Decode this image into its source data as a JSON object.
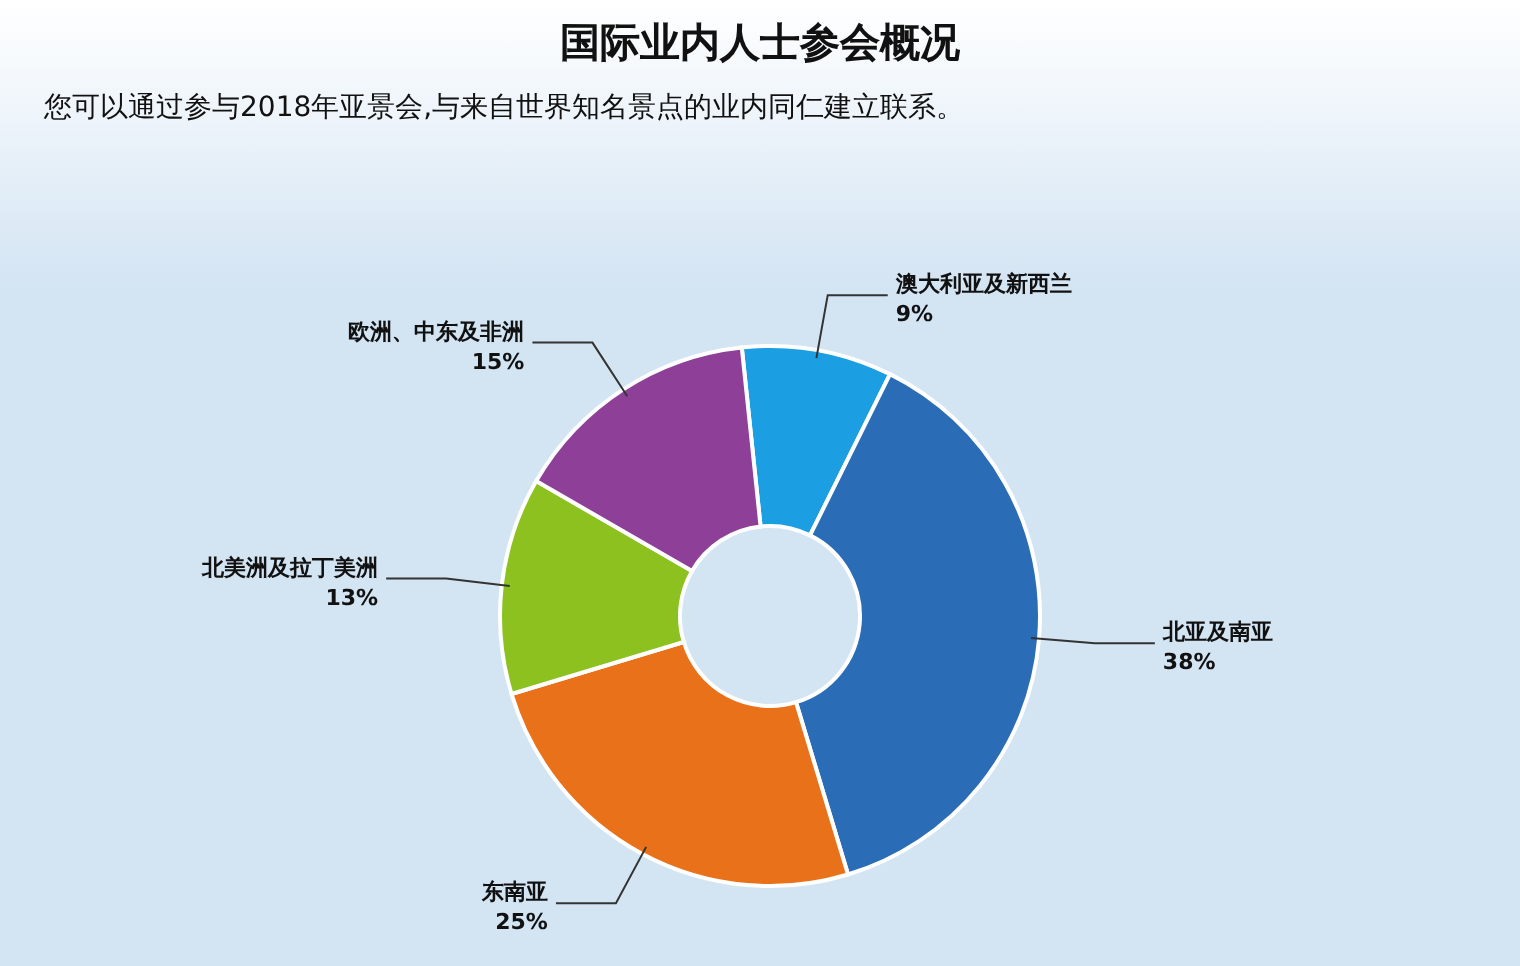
{
  "chart_data": {
    "type": "donut",
    "title": "国际业内人士参会概况",
    "subtitle": "您可以通过参与2018年亚景会,与来自世界知名景点的业内同仁建立联系。",
    "categories": [
      "澳大利亚及新西兰",
      "北亚及南亚",
      "东南亚",
      "北美洲及拉丁美洲",
      "欧洲、中东及非洲"
    ],
    "values": [
      9,
      38,
      25,
      13,
      15
    ],
    "colors": [
      "#1b9ee2",
      "#2b6cb6",
      "#e8711a",
      "#8cc120",
      "#8e3f97"
    ],
    "value_labels": [
      "9%",
      "38%",
      "25%",
      "13%",
      "15%"
    ]
  }
}
